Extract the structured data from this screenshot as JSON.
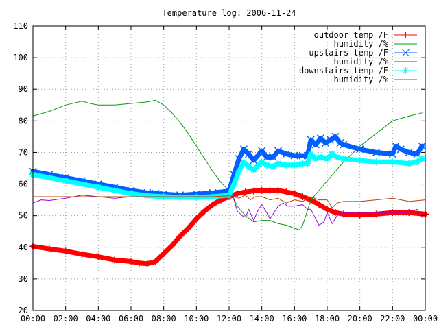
{
  "chart_data": {
    "type": "line",
    "title": "Temperature log: 2006-11-24",
    "xlabel": "",
    "ylabel": "",
    "xlim": [
      0,
      24
    ],
    "ylim": [
      20,
      110
    ],
    "grid": true,
    "legend_placement": "top-right",
    "x_ticks": [
      "00:00",
      "02:00",
      "04:00",
      "06:00",
      "08:00",
      "10:00",
      "12:00",
      "14:00",
      "16:00",
      "18:00",
      "20:00",
      "22:00",
      "00:00"
    ],
    "y_ticks": [
      "20",
      "30",
      "40",
      "50",
      "60",
      "70",
      "80",
      "90",
      "100",
      "110"
    ],
    "series": [
      {
        "name": "outdoor temp /F",
        "color": "#ff0000",
        "marker": "plus",
        "style": "heavy",
        "x": [
          0,
          1,
          2,
          3,
          4,
          5,
          6,
          6.5,
          7,
          7.5,
          8,
          8.5,
          9,
          9.5,
          10,
          10.5,
          11,
          11.5,
          12,
          12.5,
          13,
          13.5,
          14,
          14.5,
          15,
          15.5,
          16,
          16.5,
          17,
          17.5,
          18,
          18.5,
          19,
          20,
          21,
          22,
          23,
          24
        ],
        "y": [
          40.3,
          39.5,
          38.8,
          37.8,
          37,
          36,
          35.5,
          35,
          34.8,
          35.5,
          38,
          40.5,
          43.5,
          46,
          49,
          51.5,
          53.5,
          55,
          56,
          57,
          57.5,
          57.8,
          58,
          58,
          58,
          57.5,
          57,
          56,
          55,
          53.5,
          52,
          51,
          50.5,
          50.2,
          50.5,
          51,
          51,
          50.5
        ]
      },
      {
        "name": "humidity /%",
        "color": "#00a000",
        "marker": "none",
        "style": "thin",
        "x": [
          0,
          1,
          2,
          3,
          3.5,
          4,
          5,
          6,
          7,
          7.5,
          8,
          8.5,
          9,
          9.5,
          10,
          10.5,
          11,
          11.5,
          12,
          12.2,
          12.5,
          13,
          13.5,
          14,
          14.5,
          15,
          15.5,
          16,
          16.3,
          16.5,
          17,
          17.5,
          18,
          18.5,
          19,
          20,
          21,
          22,
          23,
          23.8
        ],
        "y": [
          81.5,
          83,
          85,
          86.2,
          85.5,
          85,
          85,
          85.5,
          86,
          86.5,
          85,
          82.5,
          79.5,
          76,
          72,
          68,
          64,
          60.5,
          58,
          56.5,
          53,
          50,
          48,
          48.5,
          48.5,
          47.5,
          47,
          46,
          45.5,
          47,
          55,
          58,
          61,
          64,
          67,
          72,
          76,
          80,
          81.5,
          82.5
        ]
      },
      {
        "name": "upstairs temp /F",
        "color": "#0060ff",
        "marker": "x",
        "style": "heavy",
        "x": [
          0,
          1,
          2,
          3,
          4,
          5,
          6,
          7,
          7.5,
          8,
          9,
          10,
          11,
          12,
          12.3,
          12.6,
          12.9,
          13.2,
          13.5,
          14,
          14.3,
          14.7,
          15,
          15.5,
          16,
          16.5,
          16.8,
          17,
          17.3,
          17.6,
          17.9,
          18.2,
          18.5,
          18.8,
          19,
          20,
          21,
          22,
          22.2,
          22.5,
          23,
          23.5,
          23.8
        ],
        "y": [
          64,
          63,
          62,
          61,
          60,
          59,
          58,
          57.2,
          57,
          56.8,
          56.5,
          56.8,
          57.2,
          57.8,
          63,
          68,
          71,
          69.5,
          67.5,
          70.5,
          68.5,
          68.5,
          70.5,
          69.5,
          69,
          69,
          69,
          74,
          72.5,
          74.5,
          73,
          74,
          75,
          73,
          72.5,
          71,
          70,
          69.5,
          72,
          71,
          70,
          69.5,
          72
        ]
      },
      {
        "name": "humidity /%",
        "color": "#a000e0",
        "marker": "none",
        "style": "thin",
        "x": [
          0,
          0.5,
          1,
          2,
          3,
          4,
          5,
          6,
          7,
          8,
          9,
          10,
          11,
          11.5,
          12,
          12.3,
          12.5,
          12.8,
          13,
          13.2,
          13.5,
          13.8,
          14,
          14.3,
          14.5,
          15,
          15.3,
          15.6,
          16,
          16.5,
          16.8,
          17,
          17.2,
          17.5,
          17.8,
          18,
          18.3,
          18.6,
          19,
          20,
          21,
          22,
          23,
          23.5,
          23.8,
          24
        ],
        "y": [
          54,
          55,
          54.8,
          55.5,
          56.5,
          56,
          55.5,
          56,
          56,
          56,
          56,
          56,
          56.5,
          57,
          57,
          55,
          51.5,
          50,
          49.5,
          52,
          48.5,
          52,
          53.5,
          51,
          49,
          53,
          54,
          53,
          53,
          53.5,
          52,
          52,
          50,
          47,
          48,
          51,
          47.5,
          50,
          51,
          51,
          51,
          51,
          51,
          52,
          49.5,
          50.5
        ]
      },
      {
        "name": "downstairs temp /F",
        "color": "#00ffff",
        "marker": "star",
        "style": "heavy",
        "x": [
          0,
          1,
          2,
          3,
          4,
          5,
          6,
          7,
          8,
          9,
          10,
          11,
          12,
          12.3,
          12.6,
          12.9,
          13.2,
          13.5,
          14,
          14.3,
          14.7,
          15,
          15.5,
          16,
          16.5,
          16.8,
          17,
          17.3,
          17.6,
          18,
          18.3,
          18.6,
          19,
          20,
          21,
          22,
          23,
          23.5,
          23.8
        ],
        "y": [
          63,
          62,
          61,
          60,
          59,
          58,
          57,
          56.3,
          56,
          55.8,
          55.8,
          56,
          56.5,
          60,
          64,
          67,
          65.5,
          64.5,
          67,
          66,
          65.5,
          66.5,
          66,
          66,
          66.5,
          66.5,
          69.5,
          68,
          68.5,
          68,
          69.5,
          68.5,
          68,
          67.5,
          67,
          67,
          66.5,
          67,
          68
        ]
      },
      {
        "name": "humidity /%",
        "color": "#c04000",
        "marker": "none",
        "style": "thin",
        "x": [
          0,
          1,
          2,
          3,
          4,
          5,
          6,
          7,
          8,
          9,
          10,
          11,
          12,
          12.3,
          12.6,
          13,
          13.3,
          13.6,
          14,
          14.5,
          15,
          15.5,
          16,
          16.5,
          17,
          17.5,
          18,
          18.3,
          18.6,
          19,
          20,
          21,
          22,
          23,
          24
        ],
        "y": [
          56,
          56,
          56,
          56,
          56,
          56,
          56,
          56,
          56,
          56,
          56,
          56,
          56.3,
          56,
          55.5,
          56.5,
          55,
          56,
          56,
          55,
          55.5,
          54,
          55,
          54.5,
          56,
          55,
          55,
          52.5,
          54,
          54.5,
          54.5,
          55,
          55.5,
          54.5,
          55
        ]
      }
    ]
  }
}
